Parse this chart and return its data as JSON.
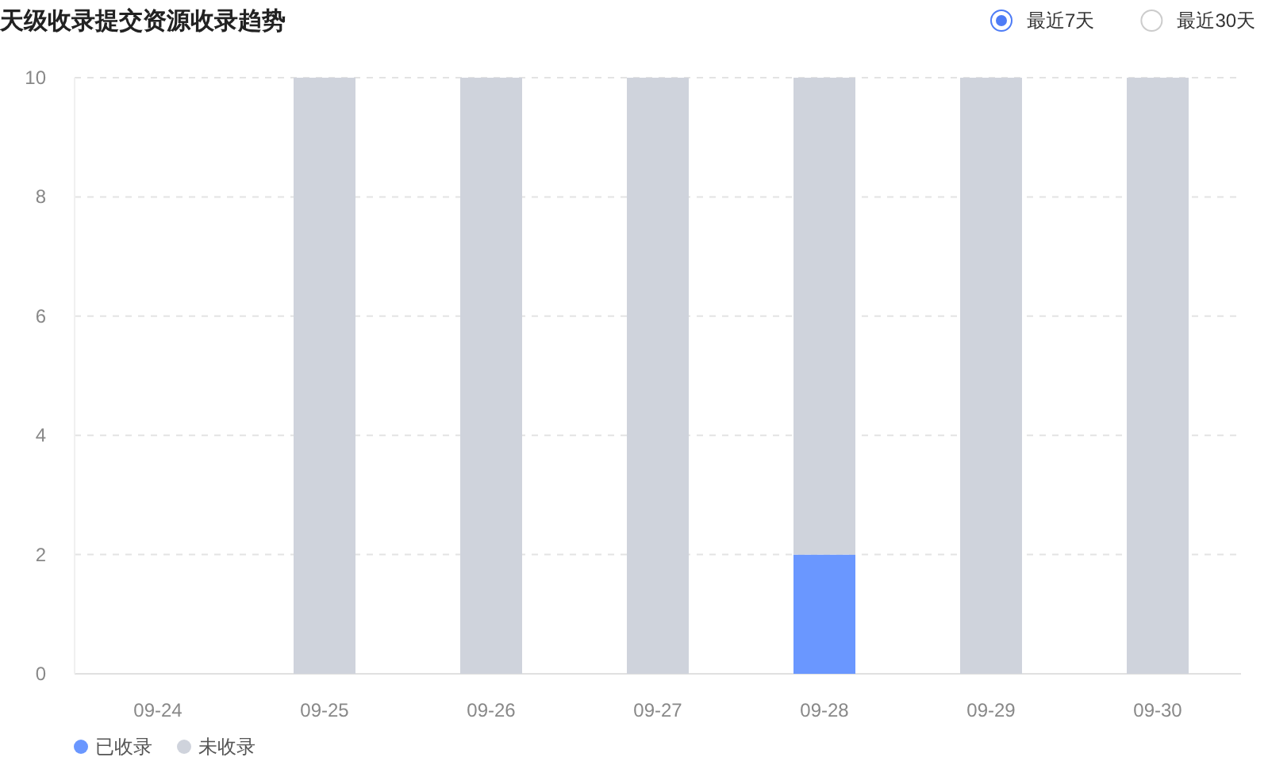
{
  "chart_data": {
    "type": "bar",
    "title": "天级收录提交资源收录趋势",
    "categories": [
      "09-24",
      "09-25",
      "09-26",
      "09-27",
      "09-28",
      "09-29",
      "09-30"
    ],
    "series": [
      {
        "name": "已收录",
        "color": "#6a97ff",
        "values": [
          0,
          0,
          0,
          0,
          2,
          0,
          0
        ]
      },
      {
        "name": "未收录",
        "color": "#cfd3dc",
        "values": [
          0,
          10,
          10,
          10,
          8,
          10,
          10
        ]
      }
    ],
    "stacked": true,
    "ylim": [
      0,
      10
    ],
    "yticks": [
      0,
      2,
      4,
      6,
      8,
      10
    ],
    "grid": "y",
    "legend": "bottom left",
    "annotations": [
      "最近7天",
      "最近30天"
    ]
  }
}
